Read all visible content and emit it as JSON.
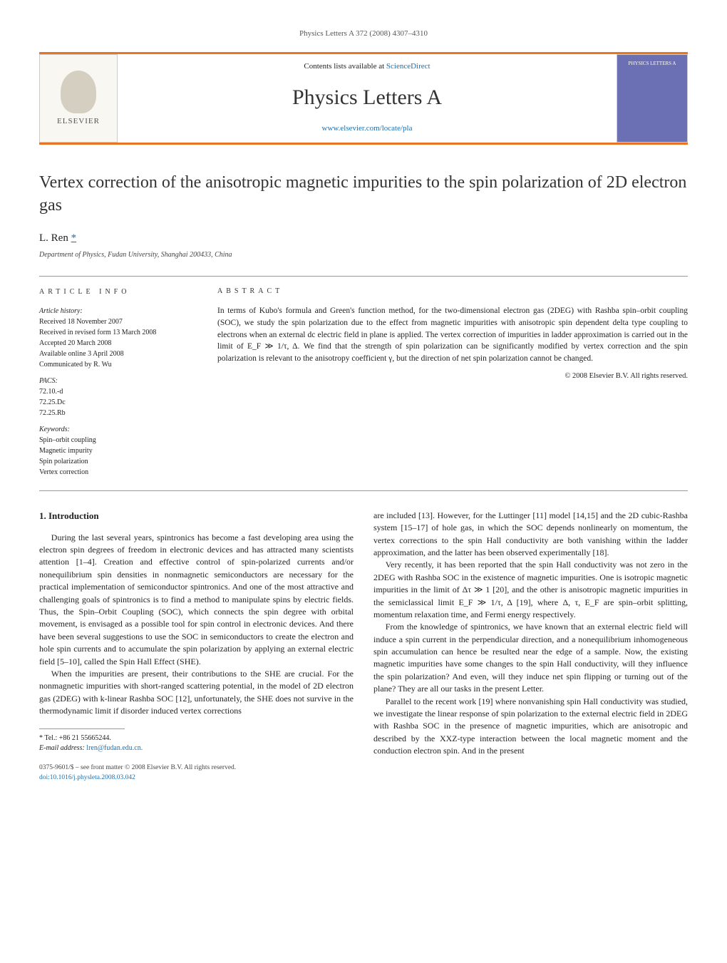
{
  "running_head": "Physics Letters A 372 (2008) 4307–4310",
  "banner": {
    "publisher": "ELSEVIER",
    "contents_prefix": "Contents lists available at ",
    "contents_link": "ScienceDirect",
    "journal_title": "Physics Letters A",
    "site_link": "www.elsevier.com/locate/pla",
    "cover_text": "PHYSICS LETTERS A"
  },
  "title": "Vertex correction of the anisotropic magnetic impurities to the spin polarization of 2D electron gas",
  "author": "L. Ren",
  "affiliation": "Department of Physics, Fudan University, Shanghai 200433, China",
  "info": {
    "heading_left": "ARTICLE INFO",
    "heading_right": "ABSTRACT",
    "history_label": "Article history:",
    "history": [
      "Received 18 November 2007",
      "Received in revised form 13 March 2008",
      "Accepted 20 March 2008",
      "Available online 3 April 2008",
      "Communicated by R. Wu"
    ],
    "pacs_label": "PACS:",
    "pacs": [
      "72.10.-d",
      "72.25.Dc",
      "72.25.Rb"
    ],
    "keywords_label": "Keywords:",
    "keywords": [
      "Spin–orbit coupling",
      "Magnetic impurity",
      "Spin polarization",
      "Vertex correction"
    ],
    "abstract": "In terms of Kubo's formula and Green's function method, for the two-dimensional electron gas (2DEG) with Rashba spin–orbit coupling (SOC), we study the spin polarization due to the effect from magnetic impurities with anisotropic spin dependent delta type coupling to electrons when an external dc electric field in plane is applied. The vertex correction of impurities in ladder approximation is carried out in the limit of E_F ≫ 1/τ, Δ. We find that the strength of spin polarization can be significantly modified by vertex correction and the spin polarization is relevant to the anisotropy coefficient γ, but the direction of net spin polarization cannot be changed.",
    "copyright": "© 2008 Elsevier B.V. All rights reserved."
  },
  "sections": {
    "intro_heading": "1. Introduction",
    "col1_p1": "During the last several years, spintronics has become a fast developing area using the electron spin degrees of freedom in electronic devices and has attracted many scientists attention [1–4]. Creation and effective control of spin-polarized currents and/or nonequilibrium spin densities in nonmagnetic semiconductors are necessary for the practical implementation of semiconductor spintronics. And one of the most attractive and challenging goals of spintronics is to find a method to manipulate spins by electric fields. Thus, the Spin–Orbit Coupling (SOC), which connects the spin degree with orbital movement, is envisaged as a possible tool for spin control in electronic devices. And there have been several suggestions to use the SOC in semiconductors to create the electron and hole spin currents and to accumulate the spin polarization by applying an external electric field [5–10], called the Spin Hall Effect (SHE).",
    "col1_p2": "When the impurities are present, their contributions to the SHE are crucial. For the nonmagnetic impurities with short-ranged scattering potential, in the model of 2D electron gas (2DEG) with k-linear Rashba SOC [12], unfortunately, the SHE does not survive in the thermodynamic limit if disorder induced vertex corrections",
    "col2_p1": "are included [13]. However, for the Luttinger [11] model [14,15] and the 2D cubic-Rashba system [15–17] of hole gas, in which the SOC depends nonlinearly on momentum, the vertex corrections to the spin Hall conductivity are both vanishing within the ladder approximation, and the latter has been observed experimentally [18].",
    "col2_p2": "Very recently, it has been reported that the spin Hall conductivity was not zero in the 2DEG with Rashba SOC in the existence of magnetic impurities. One is isotropic magnetic impurities in the limit of Δτ ≫ 1 [20], and the other is anisotropic magnetic impurities in the semiclassical limit E_F ≫ 1/τ, Δ [19], where Δ, τ, E_F are spin–orbit splitting, momentum relaxation time, and Fermi energy respectively.",
    "col2_p3": "From the knowledge of spintronics, we have known that an external electric field will induce a spin current in the perpendicular direction, and a nonequilibrium inhomogeneous spin accumulation can hence be resulted near the edge of a sample. Now, the existing magnetic impurities have some changes to the spin Hall conductivity, will they influence the spin polarization? And even, will they induce net spin flipping or turning out of the plane? They are all our tasks in the present Letter.",
    "col2_p4": "Parallel to the recent work [19] where nonvanishing spin Hall conductivity was studied, we investigate the linear response of spin polarization to the external electric field in 2DEG with Rashba SOC in the presence of magnetic impurities, which are anisotropic and described by the XXZ-type interaction between the local magnetic moment and the conduction electron spin. And in the present"
  },
  "footnote": {
    "star": "*",
    "tel": "Tel.: +86 21 55665244.",
    "email_label": "E-mail address:",
    "email": "lren@fudan.edu.cn."
  },
  "bottom": {
    "issn": "0375-9601/$ – see front matter © 2008 Elsevier B.V. All rights reserved.",
    "doi": "doi:10.1016/j.physleta.2008.03.042"
  },
  "refs": {
    "r1": "[1–4]",
    "r5": "[5–10]",
    "r12": "[12]",
    "r13": "[13]",
    "r11": "[11]",
    "r14": "[14,15]",
    "r15": "[15–17]",
    "r18": "[18]",
    "r20": "[20]",
    "r19": "[19]",
    "r19b": "[19]"
  }
}
